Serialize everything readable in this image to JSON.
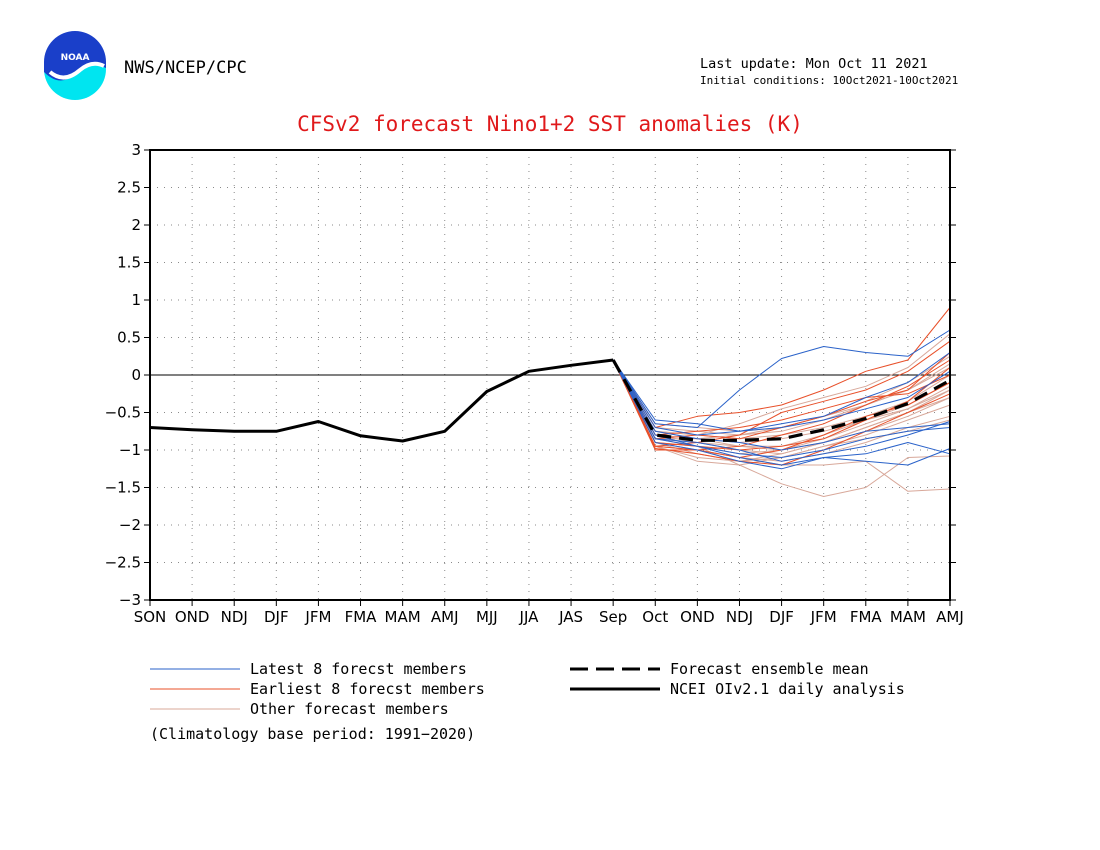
{
  "header": {
    "agency": "NWS/NCEP/CPC",
    "logo_text": "NOAA",
    "last_update": "Last update: Mon Oct 11 2021",
    "initial_conditions": "Initial conditions: 10Oct2021-10Oct2021"
  },
  "colors": {
    "latest": "#2a62c9",
    "earliest": "#e8502a",
    "other": "#d8a89a",
    "analysis": "#000000",
    "ensemble_mean": "#000000",
    "title": "#e0191b"
  },
  "chart_data": {
    "type": "line",
    "title": "CFSv2 forecast Nino1+2 SST anomalies (K)",
    "xlabel": "",
    "ylabel": "",
    "categories": [
      "SON",
      "OND",
      "NDJ",
      "DJF",
      "JFM",
      "FMA",
      "MAM",
      "AMJ",
      "MJJ",
      "JJA",
      "JAS",
      "Sep",
      "Oct",
      "OND",
      "NDJ",
      "DJF",
      "JFM",
      "FMA",
      "MAM",
      "AMJ"
    ],
    "ylim": [
      -3,
      3
    ],
    "yticks": [
      -3,
      -2.5,
      -2,
      -1.5,
      -1,
      -0.5,
      0,
      0.5,
      1,
      1.5,
      2,
      2.5,
      3
    ],
    "ytick_labels": [
      "−3",
      "−2.5",
      "−2",
      "−1.5",
      "−1",
      "−0.5",
      "0",
      "0.5",
      "1",
      "1.5",
      "2",
      "2.5",
      "3"
    ],
    "grid": true,
    "zero_line": true,
    "analysis": {
      "name": "NCEI OIv2.1 daily analysis",
      "values": [
        -0.7,
        -0.73,
        -0.75,
        -0.75,
        -0.62,
        -0.81,
        -0.88,
        -0.75,
        -0.22,
        0.05,
        0.13,
        0.2
      ]
    },
    "ensemble_mean": {
      "name": "Forecast ensemble mean",
      "start": 0.2,
      "values": [
        -0.8,
        -0.87,
        -0.87,
        -0.85,
        -0.73,
        -0.58,
        -0.38,
        -0.07
      ]
    },
    "members": [
      {
        "group": "latest",
        "values": [
          -0.65,
          -0.7,
          -0.2,
          0.22,
          0.38,
          0.3,
          0.25,
          0.6
        ]
      },
      {
        "group": "latest",
        "values": [
          -0.7,
          -0.8,
          -0.75,
          -0.65,
          -0.55,
          -0.3,
          -0.1,
          0.3
        ]
      },
      {
        "group": "latest",
        "values": [
          -0.85,
          -0.9,
          -1.0,
          -1.15,
          -1.05,
          -0.95,
          -0.8,
          -0.62
        ]
      },
      {
        "group": "latest",
        "values": [
          -0.9,
          -1.0,
          -1.15,
          -1.25,
          -1.1,
          -1.15,
          -1.2,
          -0.98
        ]
      },
      {
        "group": "latest",
        "values": [
          -0.75,
          -0.85,
          -0.9,
          -1.0,
          -0.9,
          -0.75,
          -0.7,
          -0.65
        ]
      },
      {
        "group": "latest",
        "values": [
          -0.8,
          -0.95,
          -1.05,
          -1.1,
          -1.0,
          -0.85,
          -0.75,
          -0.7
        ]
      },
      {
        "group": "latest",
        "values": [
          -0.6,
          -0.65,
          -0.75,
          -0.7,
          -0.6,
          -0.45,
          -0.3,
          0.05
        ]
      },
      {
        "group": "latest",
        "values": [
          -0.85,
          -0.95,
          -1.1,
          -1.2,
          -1.1,
          -1.05,
          -0.9,
          -1.05
        ]
      },
      {
        "group": "earliest",
        "values": [
          -0.7,
          -0.55,
          -0.5,
          -0.4,
          -0.2,
          0.05,
          0.2,
          0.9
        ]
      },
      {
        "group": "earliest",
        "values": [
          -0.95,
          -0.9,
          -0.8,
          -0.5,
          -0.35,
          -0.2,
          0.05,
          0.45
        ]
      },
      {
        "group": "earliest",
        "values": [
          -1.0,
          -1.0,
          -1.1,
          -1.0,
          -0.8,
          -0.55,
          -0.4,
          -0.1
        ]
      },
      {
        "group": "earliest",
        "values": [
          -0.9,
          -0.95,
          -1.0,
          -0.95,
          -0.85,
          -0.6,
          -0.35,
          0.1
        ]
      },
      {
        "group": "earliest",
        "values": [
          -0.98,
          -1.05,
          -1.15,
          -1.2,
          -1.0,
          -0.75,
          -0.5,
          -0.25
        ]
      },
      {
        "group": "earliest",
        "values": [
          -0.85,
          -0.8,
          -0.85,
          -0.7,
          -0.55,
          -0.35,
          -0.2,
          0.3
        ]
      },
      {
        "group": "earliest",
        "values": [
          -0.95,
          -1.0,
          -0.95,
          -0.8,
          -0.65,
          -0.4,
          -0.15,
          0.2
        ]
      },
      {
        "group": "earliest",
        "values": [
          -0.8,
          -0.75,
          -0.7,
          -0.6,
          -0.45,
          -0.3,
          -0.25,
          0.0
        ]
      },
      {
        "group": "other",
        "values": [
          -0.75,
          -0.8,
          -0.65,
          -0.45,
          -0.3,
          -0.15,
          0.1,
          0.55
        ]
      },
      {
        "group": "other",
        "values": [
          -0.85,
          -0.95,
          -1.2,
          -1.45,
          -1.62,
          -1.5,
          -1.1,
          -1.08
        ]
      },
      {
        "group": "other",
        "values": [
          -0.9,
          -1.0,
          -1.1,
          -1.2,
          -1.2,
          -1.15,
          -1.55,
          -1.52
        ]
      },
      {
        "group": "other",
        "values": [
          -0.95,
          -1.15,
          -1.2,
          -1.1,
          -0.95,
          -0.8,
          -0.6,
          -0.4
        ]
      },
      {
        "group": "other",
        "values": [
          -0.8,
          -0.85,
          -0.9,
          -0.85,
          -0.75,
          -0.6,
          -0.45,
          -0.2
        ]
      },
      {
        "group": "other",
        "values": [
          -0.7,
          -0.75,
          -0.8,
          -0.75,
          -0.6,
          -0.4,
          -0.2,
          0.15
        ]
      },
      {
        "group": "other",
        "values": [
          -0.85,
          -0.9,
          -1.0,
          -1.05,
          -0.9,
          -0.75,
          -0.55,
          -0.3
        ]
      },
      {
        "group": "other",
        "values": [
          -0.9,
          -0.95,
          -1.05,
          -1.0,
          -0.85,
          -0.65,
          -0.45,
          -0.15
        ]
      },
      {
        "group": "other",
        "values": [
          -0.75,
          -0.8,
          -0.85,
          -0.8,
          -0.7,
          -0.55,
          -0.35,
          0.0
        ]
      },
      {
        "group": "other",
        "values": [
          -0.95,
          -1.0,
          -1.1,
          -1.15,
          -1.05,
          -0.9,
          -0.7,
          -0.55
        ]
      },
      {
        "group": "other",
        "values": [
          -0.65,
          -0.7,
          -0.75,
          -0.7,
          -0.55,
          -0.35,
          -0.1,
          0.25
        ]
      },
      {
        "group": "other",
        "values": [
          -0.8,
          -0.9,
          -0.95,
          -0.95,
          -0.8,
          -0.6,
          -0.4,
          -0.1
        ]
      },
      {
        "group": "other",
        "values": [
          -0.9,
          -1.05,
          -1.15,
          -1.1,
          -0.95,
          -0.85,
          -0.75,
          -0.6
        ]
      },
      {
        "group": "other",
        "values": [
          -0.85,
          -0.85,
          -0.8,
          -0.7,
          -0.55,
          -0.4,
          -0.2,
          0.1
        ]
      },
      {
        "group": "other",
        "values": [
          -0.75,
          -0.85,
          -0.95,
          -1.0,
          -0.9,
          -0.7,
          -0.5,
          -0.3
        ]
      },
      {
        "group": "other",
        "values": [
          -0.95,
          -1.1,
          -1.15,
          -1.05,
          -0.9,
          -0.7,
          -0.5,
          -0.2
        ]
      }
    ],
    "legend": {
      "latest": "Latest 8 forecst members",
      "earliest": "Earliest 8 forecst members",
      "other": "Other forecast members",
      "ensemble_mean": "Forecast ensemble mean",
      "analysis": "NCEI OIv2.1 daily analysis"
    },
    "legend_position": "bottom"
  },
  "footer": {
    "note": "(Climatology base period: 1991−2020)"
  }
}
